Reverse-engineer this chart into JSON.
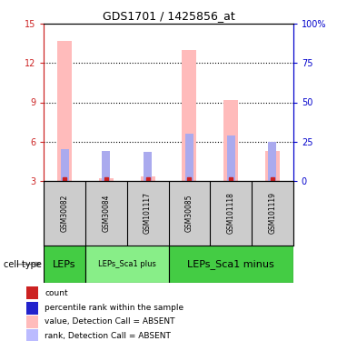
{
  "title": "GDS1701 / 1425856_at",
  "samples": [
    "GSM30082",
    "GSM30084",
    "GSM101117",
    "GSM30085",
    "GSM101118",
    "GSM101119"
  ],
  "pink_bar_values": [
    13.7,
    3.2,
    3.3,
    13.0,
    9.2,
    5.3
  ],
  "blue_bar_values": [
    20.0,
    19.0,
    18.5,
    30.0,
    29.0,
    25.0
  ],
  "red_dot_values": [
    3.1,
    3.1,
    3.1,
    3.1,
    3.1,
    3.1
  ],
  "ylim_left": [
    3,
    15
  ],
  "yticks_left": [
    3,
    6,
    9,
    12,
    15
  ],
  "yticks_right": [
    0,
    25,
    50,
    75,
    100
  ],
  "ylim_right": [
    0,
    100
  ],
  "cell_type_groups": [
    {
      "label": "LEPs",
      "start": 0,
      "end": 1,
      "color": "#44cc44",
      "font_size": 8
    },
    {
      "label": "LEPs_Sca1 plus",
      "start": 1,
      "end": 3,
      "color": "#88ee88",
      "font_size": 6
    },
    {
      "label": "LEPs_Sca1 minus",
      "start": 3,
      "end": 6,
      "color": "#44cc44",
      "font_size": 8
    }
  ],
  "legend_items": [
    {
      "color": "#cc2222",
      "label": "count"
    },
    {
      "color": "#2222cc",
      "label": "percentile rank within the sample"
    },
    {
      "color": "#ffbbbb",
      "label": "value, Detection Call = ABSENT"
    },
    {
      "color": "#bbbbff",
      "label": "rank, Detection Call = ABSENT"
    }
  ],
  "pink_color": "#ffbbbb",
  "blue_color": "#aaaaee",
  "red_color": "#cc2222",
  "left_axis_color": "#cc2222",
  "right_axis_color": "#0000cc",
  "bg_color": "#ffffff",
  "label_bg": "#cccccc",
  "grid_color": "#000000"
}
